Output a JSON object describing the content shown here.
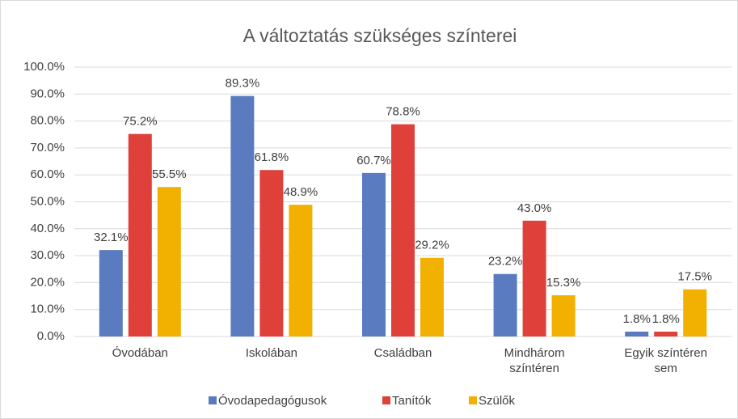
{
  "chart_data": {
    "type": "bar",
    "title": "A változtatás szükséges színterei",
    "categories": [
      "Óvodában",
      "Iskolában",
      "Családban",
      "Mindhárom színtéren",
      "Egyik színtéren sem"
    ],
    "series": [
      {
        "name": "Óvodapedagógusok",
        "color": "#5a7bbf",
        "values": [
          32.1,
          89.3,
          60.7,
          23.2,
          1.8
        ],
        "value_labels": [
          "32.1%",
          "89.3%",
          "60.7%",
          "23.2%",
          "1.8%"
        ]
      },
      {
        "name": "Tanítók",
        "color": "#e0403a",
        "values": [
          75.2,
          61.8,
          78.8,
          43.0,
          1.8
        ],
        "value_labels": [
          "75.2%",
          "61.8%",
          "78.8%",
          "43.0%",
          "1.8%"
        ]
      },
      {
        "name": "Szülők",
        "color": "#f2b000",
        "values": [
          55.5,
          48.9,
          29.2,
          15.3,
          17.5
        ],
        "value_labels": [
          "55.5%",
          "48.9%",
          "29.2%",
          "15.3%",
          "17.5%"
        ]
      }
    ],
    "ylim": [
      0,
      100
    ],
    "yticks": [
      {
        "value": 0,
        "label": "0.0%"
      },
      {
        "value": 10,
        "label": "10.0%"
      },
      {
        "value": 20,
        "label": "20.0%"
      },
      {
        "value": 30,
        "label": "30.0%"
      },
      {
        "value": 40,
        "label": "40.0%"
      },
      {
        "value": 50,
        "label": "50.0%"
      },
      {
        "value": 60,
        "label": "60.0%"
      },
      {
        "value": 70,
        "label": "70.0%"
      },
      {
        "value": 80,
        "label": "80.0%"
      },
      {
        "value": 90,
        "label": "90.0%"
      },
      {
        "value": 100,
        "label": "100.0%"
      }
    ],
    "grid": true,
    "legend": "bottom"
  }
}
